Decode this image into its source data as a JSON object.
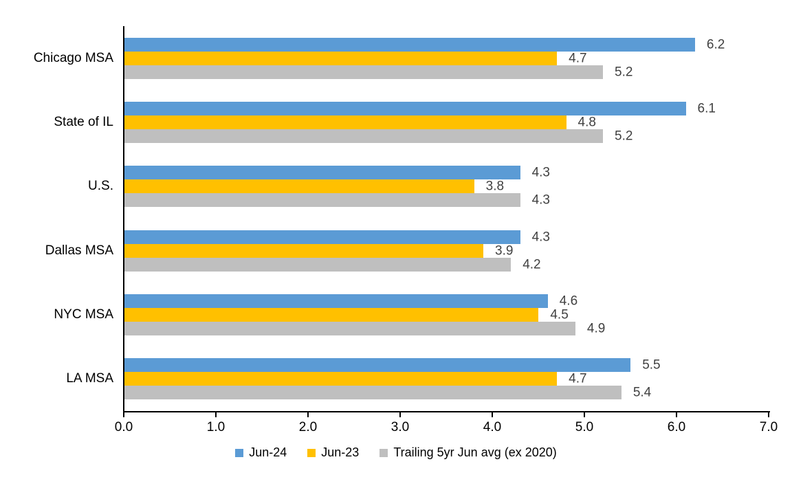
{
  "chart_data": {
    "type": "bar",
    "orientation": "horizontal",
    "title": "",
    "categories": [
      "Chicago MSA",
      "State of IL",
      "U.S.",
      "Dallas MSA",
      "NYC MSA",
      "LA MSA"
    ],
    "series": [
      {
        "name": "Jun-24",
        "color": "#5B9BD5",
        "values": [
          6.2,
          6.1,
          4.3,
          4.3,
          4.6,
          5.5
        ]
      },
      {
        "name": "Jun-23",
        "color": "#FFC000",
        "values": [
          4.7,
          4.8,
          3.8,
          3.9,
          4.5,
          4.7
        ]
      },
      {
        "name": "Trailing 5yr Jun avg (ex 2020)",
        "color": "#BFBFBF",
        "values": [
          5.2,
          5.2,
          4.3,
          4.2,
          4.9,
          5.4
        ]
      }
    ],
    "xlim": [
      0,
      7
    ],
    "x_ticks": [
      "0.0",
      "1.0",
      "2.0",
      "3.0",
      "4.0",
      "5.0",
      "6.0",
      "7.0"
    ],
    "grid": false,
    "data_labels": true,
    "legend_position": "bottom",
    "colors": {
      "axis": "#000000",
      "data_label": "#404040",
      "background": "#FFFFFF"
    }
  }
}
